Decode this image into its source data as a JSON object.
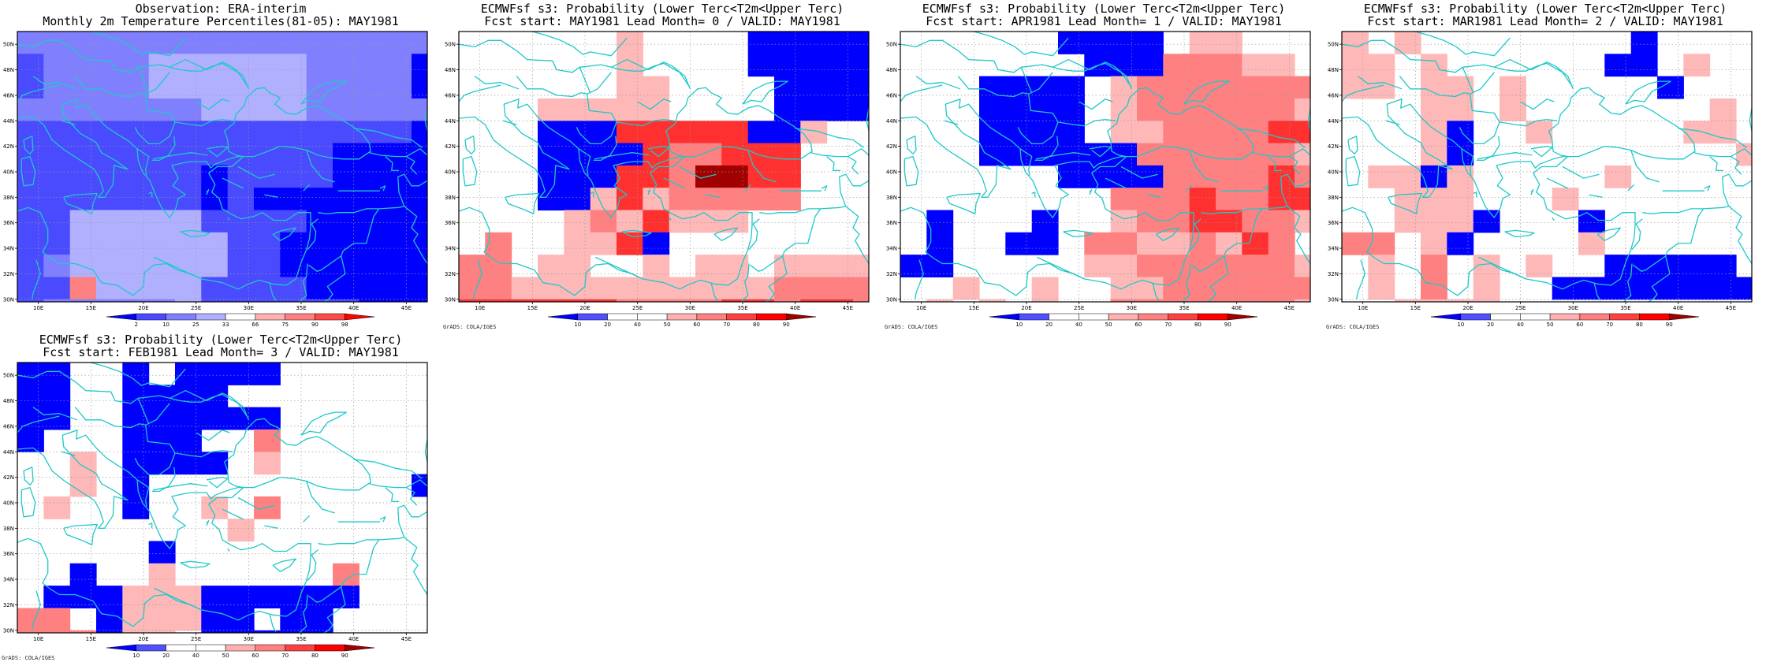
{
  "axes": {
    "x_ticks": [
      "10E",
      "15E",
      "20E",
      "25E",
      "30E",
      "35E",
      "40E",
      "45E"
    ],
    "y_ticks": [
      "30N",
      "32N",
      "34N",
      "36N",
      "38N",
      "40N",
      "42N",
      "44N",
      "46N",
      "48N",
      "50N"
    ],
    "lon_range": [
      8,
      47
    ],
    "lat_range": [
      29.8,
      51
    ]
  },
  "panels": [
    {
      "title_line1": "Observation: ERA-interim",
      "title_line2": "Monthly 2m Temperature Percentiles(81-05): MAY1981",
      "credit": "",
      "legend": {
        "labels": [
          "2",
          "10",
          "25",
          "33",
          "66",
          "75",
          "90",
          "98"
        ],
        "colors": [
          "#0000ff",
          "#4a4aff",
          "#8080ff",
          "#b0b0ff",
          "#ffffff",
          "#ffb0b0",
          "#ff8080",
          "#ff4a4a",
          "#ff0000"
        ]
      }
    },
    {
      "title_line1": "ECMWFsf s3: Probability (Lower Terc<T2m<Upper Terc)",
      "title_line2": "Fcst start: MAY1981  Lead Month= 0 / VALID: MAY1981",
      "credit": "GrADS: COLA/IGES",
      "legend": {
        "labels": [
          "10",
          "20",
          "40",
          "50",
          "60",
          "70",
          "80",
          "90"
        ],
        "colors": [
          "#0000ff",
          "#5050ff",
          "#ffffff",
          "#ffffff",
          "#ffb0b0",
          "#ff8080",
          "#ff4040",
          "#ff0000",
          "#a00000"
        ]
      }
    },
    {
      "title_line1": "ECMWFsf s3: Probability (Lower Terc<T2m<Upper Terc)",
      "title_line2": "Fcst start: APR1981  Lead Month= 1 / VALID: MAY1981",
      "credit": "GrADS: COLA/IGES",
      "legend": {
        "labels": [
          "10",
          "20",
          "40",
          "50",
          "60",
          "70",
          "80",
          "90"
        ],
        "colors": [
          "#0000ff",
          "#5050ff",
          "#ffffff",
          "#ffffff",
          "#ffb0b0",
          "#ff8080",
          "#ff4040",
          "#ff0000",
          "#a00000"
        ]
      }
    },
    {
      "title_line1": "ECMWFsf s3: Probability (Lower Terc<T2m<Upper Terc)",
      "title_line2": "Fcst start: MAR1981  Lead Month= 2 / VALID: MAY1981",
      "credit": "GrADS: COLA/IGES",
      "legend": {
        "labels": [
          "10",
          "20",
          "40",
          "50",
          "60",
          "70",
          "80",
          "90"
        ],
        "colors": [
          "#0000ff",
          "#5050ff",
          "#ffffff",
          "#ffffff",
          "#ffb0b0",
          "#ff8080",
          "#ff4040",
          "#ff0000",
          "#a00000"
        ]
      }
    },
    {
      "title_line1": "ECMWFsf s3: Probability (Lower Terc<T2m<Upper Terc)",
      "title_line2": "Fcst start: FEB1981  Lead Month= 3 / VALID: MAY1981",
      "credit": "GrADS: COLA/IGES",
      "legend": {
        "labels": [
          "10",
          "20",
          "40",
          "50",
          "60",
          "70",
          "80",
          "90"
        ],
        "colors": [
          "#0000ff",
          "#5050ff",
          "#ffffff",
          "#ffffff",
          "#ffb0b0",
          "#ff8080",
          "#ff4040",
          "#ff0000",
          "#a00000"
        ]
      }
    }
  ],
  "fields": {
    "palette": {
      "0": "#0000ff",
      "1": "#4a4aff",
      "2": "#8080ff",
      "3": "#b0b0ff",
      "4": "#ffb8b8",
      "5": "#ff8080",
      "6": "#ff3030",
      "7": "#a00000"
    },
    "grids": [
      [
        "2222222222222222",
        "1222233333322220",
        "1222233333322220",
        "2222222333322222",
        "1111111111111110",
        "1111111111110000",
        "1111111011110000",
        "1111111010000000",
        "1133333111100000",
        "1133333311000000",
        "1233333311000000",
        "1153333111100000",
        "1222223111111000"
      ],
      [
        "......4....00000",
        "......4....00000",
        "......44....0000",
        "...44444....0000",
        "...00066666004..",
        "...0000655666...",
        "...0006657766...",
        "...0046455555...",
        "....4546444.....",
        ".5..4460........",
        "55.44..4.44.4444",
        "5544444444445555",
        "6666665555665665"
      ],
      [
        "......0000.44...",
        ".......00055544.",
        "...0000.45555555",
        "...0000.45555554",
        "...0000.44555566",
        "...00000055555544",
        "......000055556566",
        "........55565566",
        ".0...0..45566554",
        ".0..00.55445465",
        "00.....4455555544",
        "..4..4..44555555",
        ".4.4.4..55555554"
      ],
      [
        "4.4........0....",
        "44.4......00.4..",
        "44.44.4.....0...",
        "...44.4.......4.",
        "...40..4.....44.",
        "...40..........4",
        ".4404.....4.....",
        "..444...4.......",
        "..4440...0......",
        "55.40....4......",
        ".4.5.4.4..00000.",
        ".4.5.4..00000000",
        "..4444.........."
      ],
      [
        "00..0.0000......",
        "00..0000........",
        "00..000000......",
        "0...000..5......",
        "..4.0000.4......",
        "..4.0..........0",
        ".4..0..4.5......",
        "........4.......",
        ".....0..........",
        "..0..4......5...",
        ".000444000000...",
        "55.044400.00....",
        "555044.00000...."
      ]
    ]
  }
}
